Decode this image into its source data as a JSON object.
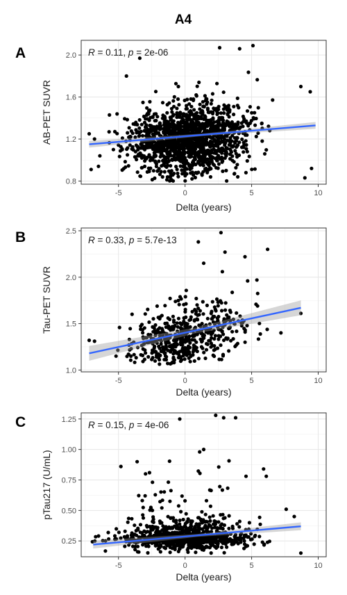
{
  "figure_title": "A4",
  "chart_data": [
    {
      "panel": "A",
      "type": "scatter",
      "xlabel": "Delta (years)",
      "ylabel": "AB-PET SUVR",
      "xlim": [
        -7.8,
        10.6
      ],
      "ylim": [
        0.77,
        2.14
      ],
      "xticks": [
        -5,
        0,
        5,
        10
      ],
      "yticks": [
        0.8,
        1.2,
        1.6,
        2.0
      ],
      "ytick_labels": [
        "0.8",
        "1.2",
        "1.6",
        "2.0"
      ],
      "grid": true,
      "annotation": {
        "R": "0.11",
        "p": "2e-06"
      },
      "fit": {
        "x": [
          -7.2,
          9.8
        ],
        "y": [
          1.15,
          1.33
        ],
        "ci": 0.02
      },
      "points": {
        "n": 1500,
        "seed": 11,
        "center": [
          0.2,
          1.2
        ],
        "sd": [
          2.2,
          0.17
        ],
        "xrange": [
          -7.2,
          9.8
        ],
        "yrange": [
          0.8,
          2.1
        ],
        "extra": [
          [
            5.1,
            2.09
          ],
          [
            4.1,
            2.06
          ],
          [
            2.6,
            2.07
          ],
          [
            -4.4,
            1.8
          ],
          [
            8.7,
            1.7
          ],
          [
            9.4,
            1.65
          ],
          [
            9.5,
            0.92
          ],
          [
            9.0,
            0.83
          ],
          [
            -7.2,
            1.25
          ],
          [
            -6.8,
            1.2
          ],
          [
            -6.4,
            1.04
          ],
          [
            -6.5,
            0.94
          ],
          [
            -3.4,
            1.97
          ]
        ]
      },
      "color": "#000000",
      "fit_color": "#3366ff"
    },
    {
      "panel": "B",
      "type": "scatter",
      "xlabel": "Delta (years)",
      "ylabel": "Tau-PET SUVR",
      "xlim": [
        -7.8,
        10.6
      ],
      "ylim": [
        0.98,
        2.53
      ],
      "xticks": [
        -5,
        0,
        5,
        10
      ],
      "yticks": [
        1.0,
        1.5,
        2.0,
        2.5
      ],
      "ytick_labels": [
        "1.0",
        "1.5",
        "2.0",
        "2.5"
      ],
      "grid": true,
      "annotation": {
        "R": "0.33",
        "p": "5.7e-13"
      },
      "fit": {
        "x": [
          -7.2,
          8.7
        ],
        "y": [
          1.18,
          1.67
        ],
        "ci": 0.05
      },
      "points": {
        "n": 520,
        "seed": 29,
        "center": [
          0.0,
          1.36
        ],
        "sd": [
          2.1,
          0.17
        ],
        "xrange": [
          -7.2,
          8.7
        ],
        "yrange": [
          1.06,
          2.48
        ],
        "extra": [
          [
            2.7,
            2.48
          ],
          [
            1.0,
            2.38
          ],
          [
            3.0,
            2.27
          ],
          [
            4.5,
            2.22
          ],
          [
            6.2,
            2.3
          ],
          [
            -7.2,
            1.32
          ],
          [
            -6.8,
            1.31
          ],
          [
            8.7,
            1.61
          ],
          [
            7.2,
            1.4
          ],
          [
            5.4,
            1.97
          ],
          [
            4.7,
            1.96
          ],
          [
            1.4,
            2.15
          ],
          [
            2.8,
            2.06
          ]
        ]
      },
      "color": "#000000",
      "fit_color": "#3366ff"
    },
    {
      "panel": "C",
      "type": "scatter",
      "xlabel": "Delta (years)",
      "ylabel": "pTau217 (U/mL)",
      "xlim": [
        -7.8,
        10.6
      ],
      "ylim": [
        0.12,
        1.3
      ],
      "xticks": [
        -5,
        0,
        5,
        10
      ],
      "yticks": [
        0.25,
        0.5,
        0.75,
        1.0,
        1.25
      ],
      "ytick_labels": [
        "0.25",
        "0.50",
        "0.75",
        "1.00",
        "1.25"
      ],
      "grid": true,
      "annotation": {
        "R": "0.15",
        "p": "4e-06"
      },
      "fit": {
        "x": [
          -6.9,
          8.7
        ],
        "y": [
          0.22,
          0.37
        ],
        "ci": 0.02
      },
      "points": {
        "n": 1050,
        "seed": 7,
        "center": [
          0.0,
          0.24
        ],
        "sd": [
          2.3,
          0.06
        ],
        "xrange": [
          -7.0,
          8.7
        ],
        "yrange": [
          0.15,
          1.28
        ],
        "skew": 0.55,
        "extra": [
          [
            -0.4,
            1.25
          ],
          [
            2.3,
            1.28
          ],
          [
            2.9,
            1.26
          ],
          [
            3.8,
            1.26
          ],
          [
            1.4,
            1.0
          ],
          [
            1.1,
            0.98
          ],
          [
            -3.6,
            0.9
          ],
          [
            -3.0,
            0.62
          ],
          [
            5.9,
            0.84
          ],
          [
            6.1,
            0.78
          ],
          [
            7.6,
            0.51
          ],
          [
            8.2,
            0.45
          ],
          [
            8.7,
            0.15
          ]
        ]
      },
      "color": "#000000",
      "fit_color": "#3366ff"
    }
  ]
}
